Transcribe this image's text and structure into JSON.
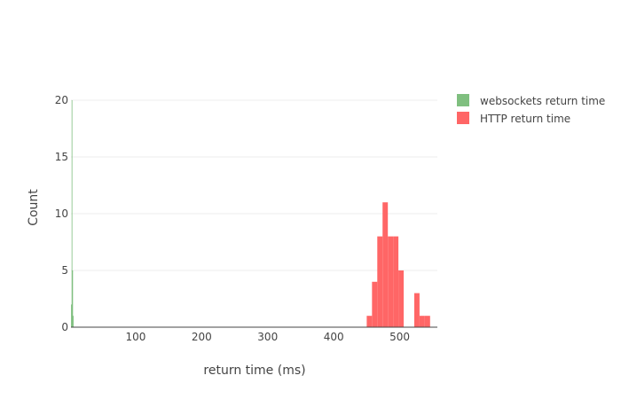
{
  "chart_data": {
    "type": "bar",
    "xlabel": "return time (ms)",
    "ylabel": "Count",
    "xlim": [
      2,
      557
    ],
    "ylim": [
      0,
      20
    ],
    "x_ticks": [
      100,
      200,
      300,
      400,
      500
    ],
    "y_ticks": [
      0,
      5,
      10,
      15,
      20
    ],
    "grid": true,
    "legend_position": "top-right",
    "bin_width": 8,
    "series": [
      {
        "name": "websockets return time",
        "color": "#7fbf7f",
        "bins": [
          {
            "x0": 2,
            "x1": 3,
            "count": 2
          },
          {
            "x0": 3,
            "x1": 4,
            "count": 20
          },
          {
            "x0": 4,
            "x1": 5,
            "count": 5
          },
          {
            "x0": 5,
            "x1": 6,
            "count": 1
          }
        ]
      },
      {
        "name": "HTTP return time",
        "color": "#ff6666",
        "bins": [
          {
            "x0": 450,
            "x1": 458,
            "count": 1
          },
          {
            "x0": 458,
            "x1": 466,
            "count": 4
          },
          {
            "x0": 466,
            "x1": 474,
            "count": 8
          },
          {
            "x0": 474,
            "x1": 482,
            "count": 11
          },
          {
            "x0": 482,
            "x1": 490,
            "count": 8
          },
          {
            "x0": 490,
            "x1": 498,
            "count": 8
          },
          {
            "x0": 498,
            "x1": 506,
            "count": 5
          },
          {
            "x0": 506,
            "x1": 514,
            "count": 0
          },
          {
            "x0": 514,
            "x1": 522,
            "count": 0
          },
          {
            "x0": 522,
            "x1": 530,
            "count": 3
          },
          {
            "x0": 530,
            "x1": 538,
            "count": 1
          },
          {
            "x0": 538,
            "x1": 546,
            "count": 1
          }
        ]
      }
    ]
  }
}
